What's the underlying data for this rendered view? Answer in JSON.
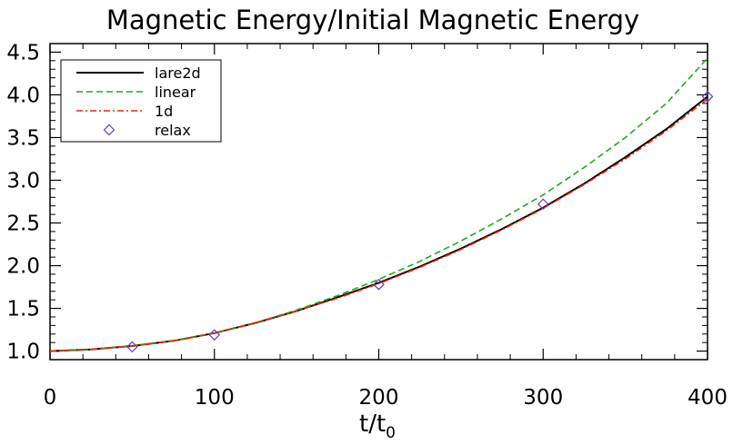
{
  "chart_data": {
    "type": "line",
    "title": "Magnetic Energy/Initial Magnetic Energy",
    "xlabel": "t/t0",
    "xlabel_main": "t/t",
    "xlabel_sub": "0",
    "ylabel": "",
    "xlim": [
      0,
      400
    ],
    "ylim": [
      0.9,
      4.6
    ],
    "xticks": [
      0,
      100,
      200,
      300,
      400
    ],
    "xtick_labels": [
      "0",
      "100",
      "200",
      "300",
      "400"
    ],
    "yticks": [
      1.0,
      1.5,
      2.0,
      2.5,
      3.0,
      3.5,
      4.0,
      4.5
    ],
    "ytick_labels": [
      "1.0",
      "1.5",
      "2.0",
      "2.5",
      "3.0",
      "3.5",
      "4.0",
      "4.5"
    ],
    "legend_position": "top-left",
    "series": [
      {
        "name": "lare2d",
        "style": "solid",
        "color": "#000000",
        "x": [
          0,
          25,
          50,
          75,
          100,
          125,
          150,
          175,
          200,
          225,
          250,
          275,
          300,
          325,
          350,
          375,
          400
        ],
        "y": [
          1.0,
          1.02,
          1.06,
          1.12,
          1.21,
          1.33,
          1.47,
          1.63,
          1.8,
          1.99,
          2.2,
          2.43,
          2.68,
          2.96,
          3.27,
          3.6,
          3.98
        ]
      },
      {
        "name": "linear",
        "style": "dashed",
        "color": "#22aa22",
        "x": [
          0,
          25,
          50,
          75,
          100,
          125,
          150,
          175,
          200,
          225,
          250,
          275,
          300,
          325,
          350,
          375,
          400
        ],
        "y": [
          1.0,
          1.02,
          1.06,
          1.12,
          1.21,
          1.33,
          1.48,
          1.65,
          1.84,
          2.05,
          2.29,
          2.55,
          2.83,
          3.15,
          3.5,
          3.9,
          4.43
        ]
      },
      {
        "name": "1d",
        "style": "dashdot",
        "color": "#ff2200",
        "x": [
          0,
          25,
          50,
          75,
          100,
          125,
          150,
          175,
          200,
          225,
          250,
          275,
          300,
          325,
          350,
          375,
          400
        ],
        "y": [
          1.0,
          1.02,
          1.06,
          1.12,
          1.21,
          1.33,
          1.47,
          1.62,
          1.79,
          1.98,
          2.19,
          2.42,
          2.67,
          2.95,
          3.25,
          3.58,
          3.95
        ]
      },
      {
        "name": "relax",
        "style": "markers",
        "marker": "diamond",
        "color": "#6a3bbf",
        "x": [
          50,
          100,
          200,
          300,
          400
        ],
        "y": [
          1.05,
          1.19,
          1.78,
          2.72,
          3.98
        ]
      }
    ]
  }
}
